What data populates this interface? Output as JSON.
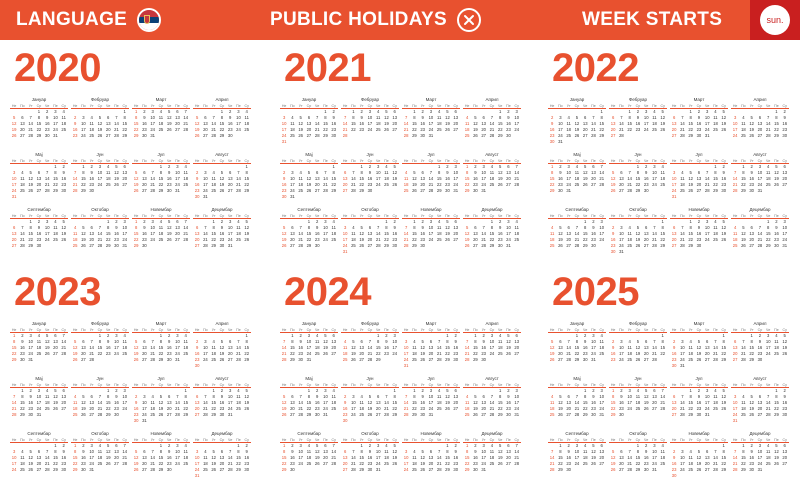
{
  "header": {
    "language_label": "LANGUAGE",
    "holidays_label": "PUBLIC HOLIDAYS",
    "week_label": "WEEK STARTS",
    "week_start_badge": "sun.",
    "accent_color": "#e8512f",
    "badge_color": "#c91f1f",
    "flag_icon": "serbia-flag-icon",
    "holidays_icon": "close-icon"
  },
  "day_headers": [
    "Не",
    "По",
    "Ут",
    "Ср",
    "Че",
    "Пе",
    "Су"
  ],
  "month_names": [
    "Јануар",
    "Фебруар",
    "Март",
    "Април",
    "Мај",
    "Јун",
    "Јул",
    "Август",
    "Септембар",
    "Октобар",
    "Новембар",
    "Децембар"
  ],
  "years": [
    "2020",
    "2021",
    "2022",
    "2023",
    "2024",
    "2025"
  ]
}
